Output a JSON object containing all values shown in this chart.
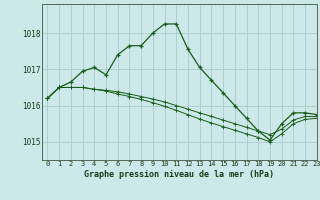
{
  "title": "Graphe pression niveau de la mer (hPa)",
  "bg_color": "#cce8e8",
  "grid_color": "#aacccc",
  "line_color": "#1a5c1a",
  "xlim": [
    -0.5,
    23
  ],
  "ylim": [
    1014.5,
    1018.8
  ],
  "yticks": [
    1015,
    1016,
    1017,
    1018
  ],
  "xticks": [
    0,
    1,
    2,
    3,
    4,
    5,
    6,
    7,
    8,
    9,
    10,
    11,
    12,
    13,
    14,
    15,
    16,
    17,
    18,
    19,
    20,
    21,
    22,
    23
  ],
  "series": [
    [
      1016.2,
      1016.5,
      1016.65,
      1016.95,
      1017.05,
      1016.85,
      1017.4,
      1017.65,
      1017.65,
      1018.0,
      1018.25,
      1018.25,
      1017.55,
      1017.05,
      1016.7,
      1016.35,
      1016.0,
      1015.65,
      1015.3,
      1015.05,
      1015.5,
      1015.8,
      1015.8,
      1015.75
    ],
    [
      1016.2,
      1016.5,
      1016.5,
      1016.5,
      1016.45,
      1016.42,
      1016.38,
      1016.32,
      1016.25,
      1016.18,
      1016.1,
      1016.0,
      1015.9,
      1015.8,
      1015.7,
      1015.6,
      1015.5,
      1015.4,
      1015.3,
      1015.2,
      1015.35,
      1015.6,
      1015.7,
      1015.7
    ],
    [
      1016.2,
      1016.5,
      1016.5,
      1016.5,
      1016.45,
      1016.4,
      1016.32,
      1016.25,
      1016.17,
      1016.08,
      1015.98,
      1015.87,
      1015.75,
      1015.63,
      1015.52,
      1015.42,
      1015.32,
      1015.22,
      1015.12,
      1015.0,
      1015.22,
      1015.5,
      1015.62,
      1015.65
    ]
  ]
}
